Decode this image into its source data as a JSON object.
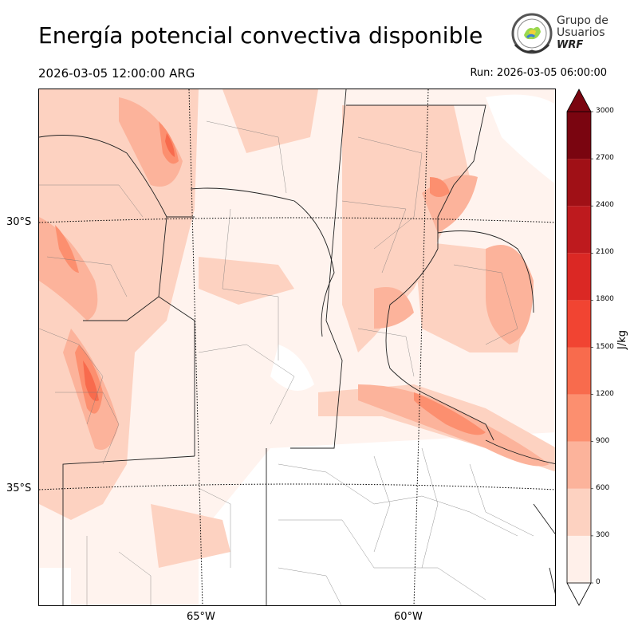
{
  "header": {
    "title": "Energía potencial convectiva disponible",
    "valid_time": "2026-03-05 12:00:00 ARG",
    "run_time": "Run: 2026-03-05 06:00:00"
  },
  "logo": {
    "line1": "Grupo de",
    "line2": "Usuarios",
    "line3": "WRF"
  },
  "map": {
    "lat_labels": [
      "30°S",
      "35°S"
    ],
    "lon_labels": [
      "65°W",
      "60°W"
    ]
  },
  "colorbar": {
    "unit": "J/kg",
    "ticks": [
      "0",
      "300",
      "600",
      "900",
      "1200",
      "1500",
      "1800",
      "2100",
      "2400",
      "2700",
      "3000"
    ],
    "colors": [
      "#fff0ea",
      "#fdd2c1",
      "#fcb39b",
      "#fc8f6f",
      "#f86b4d",
      "#f14432",
      "#db2824",
      "#be1a1e",
      "#a01016",
      "#7a0510"
    ]
  }
}
